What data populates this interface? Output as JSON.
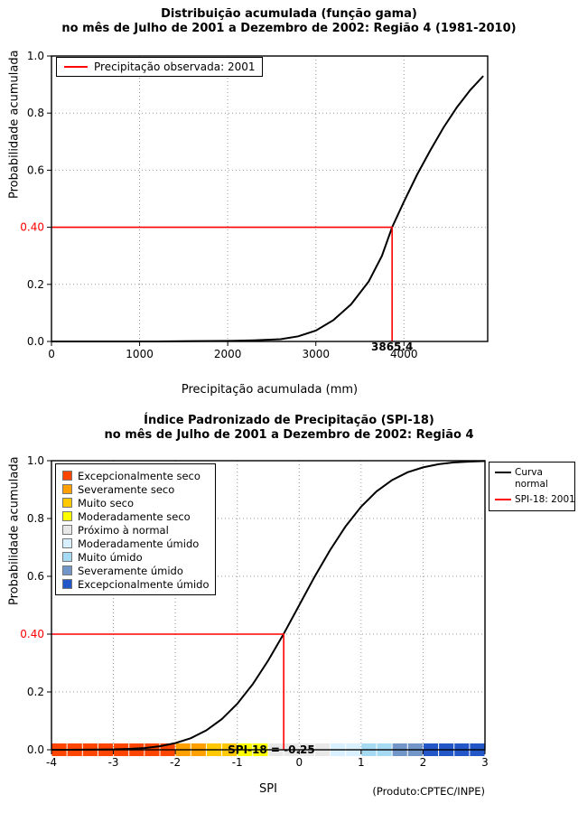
{
  "credit": "(Produto:CPTEC/INPE)",
  "chart_data": [
    {
      "type": "line",
      "title": "Distribuição acumulada (função gama)",
      "subtitle": "no mês de Julho de 2001 a Dezembro de 2002: Região 4 (1981-2010)",
      "xlabel": "Precipitação acumulada (mm)",
      "ylabel": "Probabilidade acumulada",
      "xlim": [
        0,
        4950
      ],
      "ylim": [
        0,
        1
      ],
      "x_ticks": [
        0,
        1000,
        2000,
        3000,
        4000
      ],
      "y_ticks": [
        0,
        0.2,
        0.4,
        0.6,
        0.8,
        1
      ],
      "grid": "dotted",
      "legend": {
        "position": "topleft",
        "entries": [
          {
            "label": "Precipitação observada: 2001",
            "color": "#ff0000"
          }
        ]
      },
      "series": [
        {
          "name": "Distribuição gama acumulada",
          "color": "#000000",
          "x": [
            0,
            400,
            800,
            1200,
            1600,
            2000,
            2300,
            2600,
            2800,
            3000,
            3200,
            3400,
            3600,
            3750,
            3865.4,
            4000,
            4150,
            4300,
            4450,
            4600,
            4750,
            4900
          ],
          "y": [
            0,
            0,
            0,
            0,
            0.001,
            0.002,
            0.004,
            0.008,
            0.018,
            0.038,
            0.075,
            0.13,
            0.21,
            0.3,
            0.4,
            0.49,
            0.585,
            0.67,
            0.75,
            0.82,
            0.88,
            0.93
          ]
        }
      ],
      "annotation": {
        "x": 3865.4,
        "y": 0.4,
        "x_label": "3865.4",
        "y_label": "0.40",
        "color": "#ff0000"
      }
    },
    {
      "type": "line",
      "title": "Índice Padronizado de Precipitação (SPI-18)",
      "subtitle": "no mês de Julho de 2001 a Dezembro de 2002: Região 4",
      "xlabel": "SPI",
      "ylabel": "Probabilidade acumulada",
      "xlim": [
        -4,
        3
      ],
      "ylim": [
        0,
        1
      ],
      "x_ticks": [
        -4,
        -3,
        -2,
        -1,
        0,
        1,
        2,
        3
      ],
      "y_ticks": [
        0,
        0.2,
        0.4,
        0.6,
        0.8,
        1
      ],
      "grid": "dotted",
      "legend": {
        "position": "topright",
        "entries": [
          {
            "label": "Curva normal",
            "color": "#000000"
          },
          {
            "label": "SPI-18: 2001",
            "color": "#ff0000"
          }
        ]
      },
      "categories_legend": [
        {
          "label": "Excepcionalmente seco",
          "color": "#ff4500"
        },
        {
          "label": "Severamente seco",
          "color": "#ffa000"
        },
        {
          "label": "Muito seco",
          "color": "#ffc800"
        },
        {
          "label": "Moderadamente seco",
          "color": "#ffff00"
        },
        {
          "label": "Próximo à normal",
          "color": "#e8e8e8"
        },
        {
          "label": "Moderadamente úmido",
          "color": "#d8f0ff"
        },
        {
          "label": "Muito úmido",
          "color": "#a6d9f2"
        },
        {
          "label": "Severamente úmido",
          "color": "#7396c8"
        },
        {
          "label": "Excepcionalmente úmido",
          "color": "#2357c8"
        }
      ],
      "colorbar": {
        "breaks": [
          -4,
          -2,
          -1.5,
          -1,
          -0.5,
          0.5,
          1,
          1.5,
          2,
          3
        ],
        "colors": [
          "#ff4500",
          "#ffa000",
          "#ffc800",
          "#ffff00",
          "#e8e8e8",
          "#d8f0ff",
          "#a6d9f2",
          "#7396c8",
          "#2357c8"
        ]
      },
      "series": [
        {
          "name": "Curva normal",
          "color": "#000000",
          "x": [
            -4,
            -3.75,
            -3.5,
            -3.25,
            -3,
            -2.75,
            -2.5,
            -2.25,
            -2,
            -1.75,
            -1.5,
            -1.25,
            -1,
            -0.75,
            -0.5,
            -0.25,
            0,
            0.25,
            0.5,
            0.75,
            1,
            1.25,
            1.5,
            1.75,
            2,
            2.25,
            2.5,
            2.75,
            3
          ],
          "y": [
            0.0001,
            0.0001,
            0.0002,
            0.0006,
            0.0013,
            0.003,
            0.006,
            0.012,
            0.023,
            0.04,
            0.067,
            0.106,
            0.159,
            0.227,
            0.309,
            0.401,
            0.5,
            0.599,
            0.691,
            0.773,
            0.841,
            0.894,
            0.933,
            0.96,
            0.977,
            0.988,
            0.994,
            0.997,
            0.999
          ]
        }
      ],
      "annotation": {
        "x": -0.25,
        "y": 0.4,
        "y_label": "0.40",
        "bar_label": "SPI-18 = -0.25",
        "bar_label_x": -0.45,
        "color": "#ff0000"
      }
    }
  ]
}
